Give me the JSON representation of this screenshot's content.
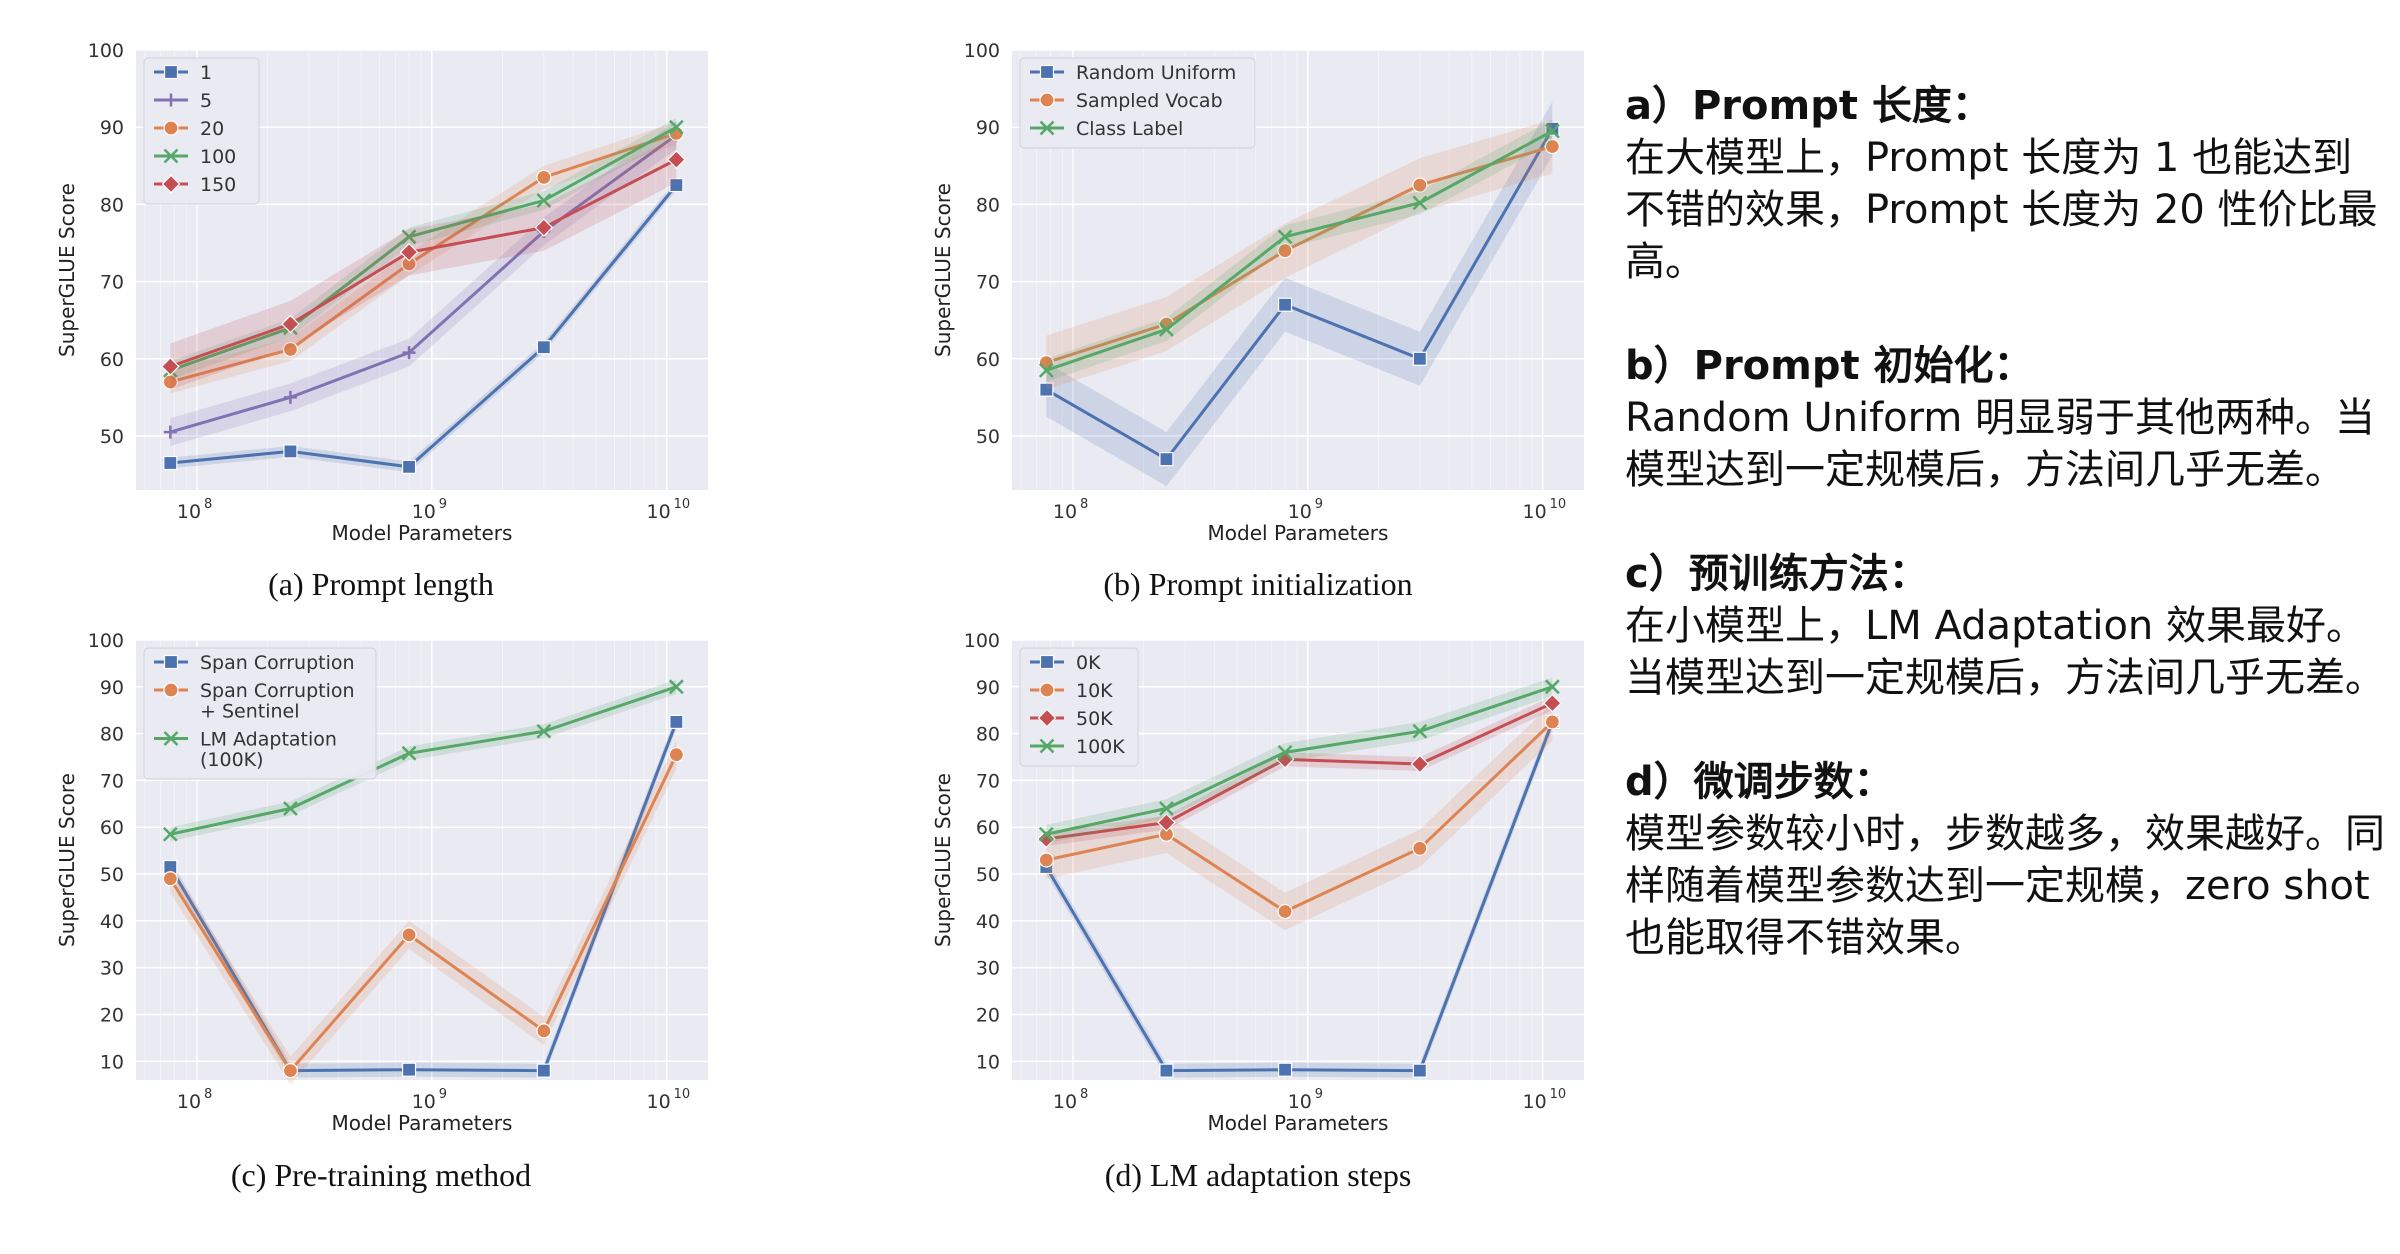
{
  "figure": {
    "captions": {
      "a": "(a) Prompt length",
      "b": "(b) Prompt initialization",
      "c": "(c) Pre-training method",
      "d": "(d) LM adaptation steps"
    }
  },
  "notes": [
    {
      "title": "a）Prompt 长度：",
      "body": "在大模型上，Prompt 长度为 1 也能达到不错的效果，Prompt 长度为 20 性价比最高。"
    },
    {
      "title": "b）Prompt 初始化：",
      "body": "Random Uniform 明显弱于其他两种。当模型达到一定规模后，方法间几乎无差。"
    },
    {
      "title": "c）预训练方法：",
      "body": "在小模型上，LM Adaptation 效果最好。当模型达到一定规模后，方法间几乎无差。"
    },
    {
      "title": "d）微调步数：",
      "body": "模型参数较小时，步数越多，效果越好。同样随着模型参数达到一定规模，zero shot 也能取得不错效果。"
    }
  ],
  "chart_data": [
    {
      "type": "line",
      "xlabel": "Model Parameters",
      "ylabel": "SuperGLUE Score",
      "x_scale": "log",
      "x": [
        77000000,
        250000000,
        800000000,
        3000000000,
        11000000000
      ],
      "xlim": [
        55000000,
        15000000000
      ],
      "xticks": [
        {
          "value": 100000000,
          "label": "10",
          "exp": "8"
        },
        {
          "value": 1000000000,
          "label": "10",
          "exp": "9"
        },
        {
          "value": 10000000000,
          "label": "10",
          "exp": "10"
        }
      ],
      "ylim": [
        43,
        100
      ],
      "yticks": [
        50,
        60,
        70,
        80,
        90,
        100
      ],
      "legend_position": "top-left",
      "grid": true,
      "series": [
        {
          "name": "1",
          "color": "#4c72b0",
          "marker": "square",
          "values": [
            46.5,
            48,
            46,
            61.5,
            82.5
          ],
          "band": 0.7
        },
        {
          "name": "5",
          "color": "#8172b3",
          "marker": "plus",
          "values": [
            50.5,
            55,
            60.8,
            76.5,
            89
          ],
          "band": 1.8
        },
        {
          "name": "20",
          "color": "#dd8452",
          "marker": "circle",
          "values": [
            57,
            61.2,
            72.3,
            83.5,
            89.2
          ],
          "band": 1.5
        },
        {
          "name": "100",
          "color": "#55a868",
          "marker": "x",
          "values": [
            58.5,
            64,
            75.8,
            80.5,
            90
          ],
          "band": 1.2
        },
        {
          "name": "150",
          "color": "#c44e52",
          "marker": "diamond",
          "values": [
            59,
            64.5,
            73.8,
            77,
            85.8
          ],
          "band": 3
        }
      ]
    },
    {
      "type": "line",
      "xlabel": "Model Parameters",
      "ylabel": "SuperGLUE Score",
      "x_scale": "log",
      "x": [
        77000000,
        250000000,
        800000000,
        3000000000,
        11000000000
      ],
      "xlim": [
        55000000,
        15000000000
      ],
      "xticks": [
        {
          "value": 100000000,
          "label": "10",
          "exp": "8"
        },
        {
          "value": 1000000000,
          "label": "10",
          "exp": "9"
        },
        {
          "value": 10000000000,
          "label": "10",
          "exp": "10"
        }
      ],
      "ylim": [
        43,
        100
      ],
      "yticks": [
        50,
        60,
        70,
        80,
        90,
        100
      ],
      "legend_position": "top-left",
      "grid": true,
      "series": [
        {
          "name": "Random Uniform",
          "color": "#4c72b0",
          "marker": "square",
          "values": [
            56,
            47,
            67,
            60,
            89.8
          ],
          "band": 3.5
        },
        {
          "name": "Sampled Vocab",
          "color": "#dd8452",
          "marker": "circle",
          "values": [
            59.5,
            64.5,
            74,
            82.5,
            87.5
          ],
          "band": 3.5
        },
        {
          "name": "Class Label",
          "color": "#55a868",
          "marker": "x",
          "values": [
            58.5,
            63.8,
            75.8,
            80.2,
            89.5
          ],
          "band": 1.5
        }
      ]
    },
    {
      "type": "line",
      "xlabel": "Model Parameters",
      "ylabel": "SuperGLUE Score",
      "x_scale": "log",
      "x": [
        77000000,
        250000000,
        800000000,
        3000000000,
        11000000000
      ],
      "xlim": [
        55000000,
        15000000000
      ],
      "xticks": [
        {
          "value": 100000000,
          "label": "10",
          "exp": "8"
        },
        {
          "value": 1000000000,
          "label": "10",
          "exp": "9"
        },
        {
          "value": 10000000000,
          "label": "10",
          "exp": "10"
        }
      ],
      "ylim": [
        6,
        100
      ],
      "yticks": [
        10,
        20,
        30,
        40,
        50,
        60,
        70,
        80,
        90,
        100
      ],
      "legend_position": "top-left",
      "grid": true,
      "series": [
        {
          "name": "Span Corruption",
          "color": "#4c72b0",
          "marker": "square",
          "values": [
            51.5,
            8,
            8.2,
            8,
            82.5
          ],
          "band": 1.5
        },
        {
          "name": "Span Corruption\n+ Sentinel",
          "color": "#dd8452",
          "marker": "circle",
          "values": [
            49,
            8,
            37,
            16.5,
            75.5
          ],
          "band": 3
        },
        {
          "name": "LM Adaptation\n(100K)",
          "color": "#55a868",
          "marker": "x",
          "values": [
            58.5,
            64,
            75.8,
            80.5,
            90
          ],
          "band": 1.5
        }
      ]
    },
    {
      "type": "line",
      "xlabel": "Model Parameters",
      "ylabel": "SuperGLUE Score",
      "x_scale": "log",
      "x": [
        77000000,
        250000000,
        800000000,
        3000000000,
        11000000000
      ],
      "xlim": [
        55000000,
        15000000000
      ],
      "xticks": [
        {
          "value": 100000000,
          "label": "10",
          "exp": "8"
        },
        {
          "value": 1000000000,
          "label": "10",
          "exp": "9"
        },
        {
          "value": 10000000000,
          "label": "10",
          "exp": "10"
        }
      ],
      "ylim": [
        6,
        100
      ],
      "yticks": [
        10,
        20,
        30,
        40,
        50,
        60,
        70,
        80,
        90,
        100
      ],
      "legend_position": "top-left",
      "grid": true,
      "series": [
        {
          "name": "0K",
          "color": "#4c72b0",
          "marker": "square",
          "values": [
            51.5,
            8,
            8.2,
            8,
            82.5
          ],
          "band": 1.5
        },
        {
          "name": "10K",
          "color": "#dd8452",
          "marker": "circle",
          "values": [
            53,
            58.5,
            42,
            55.5,
            82.5
          ],
          "band": 4
        },
        {
          "name": "50K",
          "color": "#c44e52",
          "marker": "diamond",
          "values": [
            57.5,
            61,
            74.5,
            73.5,
            86.5
          ],
          "band": 1.5
        },
        {
          "name": "100K",
          "color": "#55a868",
          "marker": "x",
          "values": [
            58.5,
            64,
            76,
            80.5,
            90
          ],
          "band": 2
        }
      ]
    }
  ]
}
